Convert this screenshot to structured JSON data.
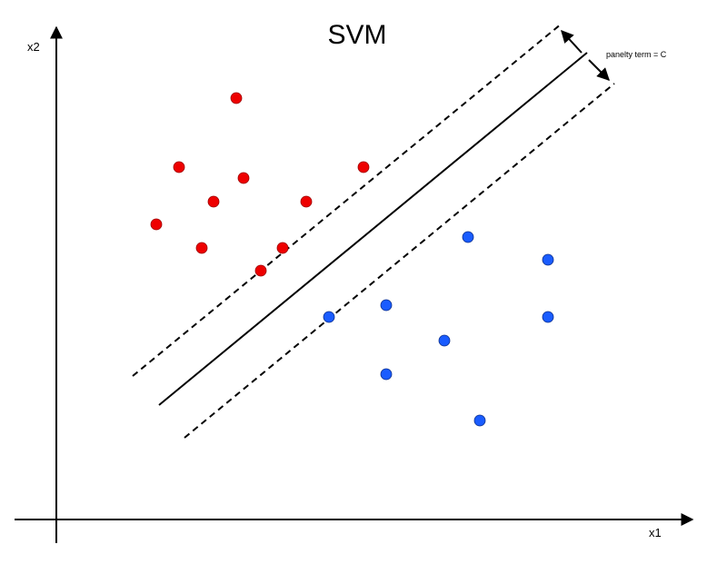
{
  "title": "SVM",
  "axes": {
    "x_label": "x1",
    "y_label": "x2"
  },
  "annotation": "panelty term = C",
  "colors": {
    "class_a": "#ee0000",
    "class_a_edge": "#9a0000",
    "class_b": "#1a5cff",
    "class_b_edge": "#0d2f8a",
    "lines": "#000000"
  },
  "points": {
    "class_a": [
      [
        260,
        108
      ],
      [
        197,
        184
      ],
      [
        268,
        196
      ],
      [
        400,
        184
      ],
      [
        235,
        222
      ],
      [
        337,
        222
      ],
      [
        172,
        247
      ],
      [
        222,
        273
      ],
      [
        311,
        273
      ],
      [
        287,
        298
      ]
    ],
    "class_b": [
      [
        515,
        261
      ],
      [
        603,
        286
      ],
      [
        425,
        336
      ],
      [
        362,
        349
      ],
      [
        603,
        349
      ],
      [
        489,
        375
      ],
      [
        425,
        412
      ],
      [
        528,
        463
      ]
    ]
  }
}
